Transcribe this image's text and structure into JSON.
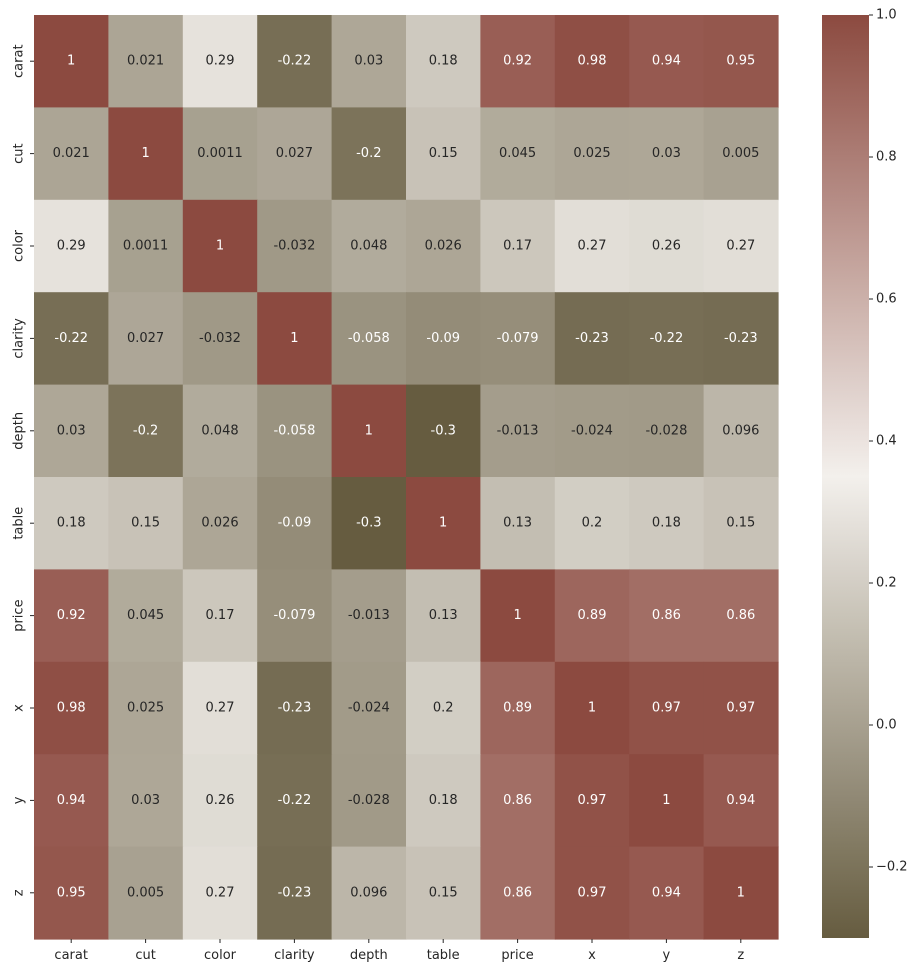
{
  "chart_data": {
    "type": "heatmap",
    "title": "",
    "xlabel": "",
    "ylabel": "",
    "x_labels": [
      "carat",
      "cut",
      "color",
      "clarity",
      "depth",
      "table",
      "price",
      "x",
      "y",
      "z"
    ],
    "y_labels": [
      "carat",
      "cut",
      "color",
      "clarity",
      "depth",
      "table",
      "price",
      "x",
      "y",
      "z"
    ],
    "cells": [
      [
        "1",
        "0.021",
        "0.29",
        "-0.22",
        "0.03",
        "0.18",
        "0.92",
        "0.98",
        "0.94",
        "0.95"
      ],
      [
        "0.021",
        "1",
        "0.0011",
        "0.027",
        "-0.2",
        "0.15",
        "0.045",
        "0.025",
        "0.03",
        "0.005"
      ],
      [
        "0.29",
        "0.0011",
        "1",
        "-0.032",
        "0.048",
        "0.026",
        "0.17",
        "0.27",
        "0.26",
        "0.27"
      ],
      [
        "-0.22",
        "0.027",
        "-0.032",
        "1",
        "-0.058",
        "-0.09",
        "-0.079",
        "-0.23",
        "-0.22",
        "-0.23"
      ],
      [
        "0.03",
        "-0.2",
        "0.048",
        "-0.058",
        "1",
        "-0.3",
        "-0.013",
        "-0.024",
        "-0.028",
        "0.096"
      ],
      [
        "0.18",
        "0.15",
        "0.026",
        "-0.09",
        "-0.3",
        "1",
        "0.13",
        "0.2",
        "0.18",
        "0.15"
      ],
      [
        "0.92",
        "0.045",
        "0.17",
        "-0.079",
        "-0.013",
        "0.13",
        "1",
        "0.89",
        "0.86",
        "0.86"
      ],
      [
        "0.98",
        "0.025",
        "0.27",
        "-0.23",
        "-0.024",
        "0.2",
        "0.89",
        "1",
        "0.97",
        "0.97"
      ],
      [
        "0.94",
        "0.03",
        "0.26",
        "-0.22",
        "-0.028",
        "0.18",
        "0.86",
        "0.97",
        "1",
        "0.94"
      ],
      [
        "0.95",
        "0.005",
        "0.27",
        "-0.23",
        "0.096",
        "0.15",
        "0.86",
        "0.97",
        "0.94",
        "1"
      ]
    ],
    "color_range": [
      -0.3,
      1.0
    ],
    "colorbar": {
      "ticks": [
        1.0,
        0.8,
        0.6,
        0.4,
        0.2,
        0.0,
        -0.2
      ],
      "tick_labels": [
        "1.0",
        "0.8",
        "0.6",
        "0.4",
        "0.2",
        "0.0",
        "−0.2"
      ],
      "placement": "right"
    },
    "colormap": {
      "low": "#665c40",
      "mid": "#f3f0ec",
      "high": "#8c4a40"
    },
    "text_colors": {
      "dark": "#262626",
      "light": "#ffffff"
    },
    "grid": false,
    "legend": "none"
  }
}
